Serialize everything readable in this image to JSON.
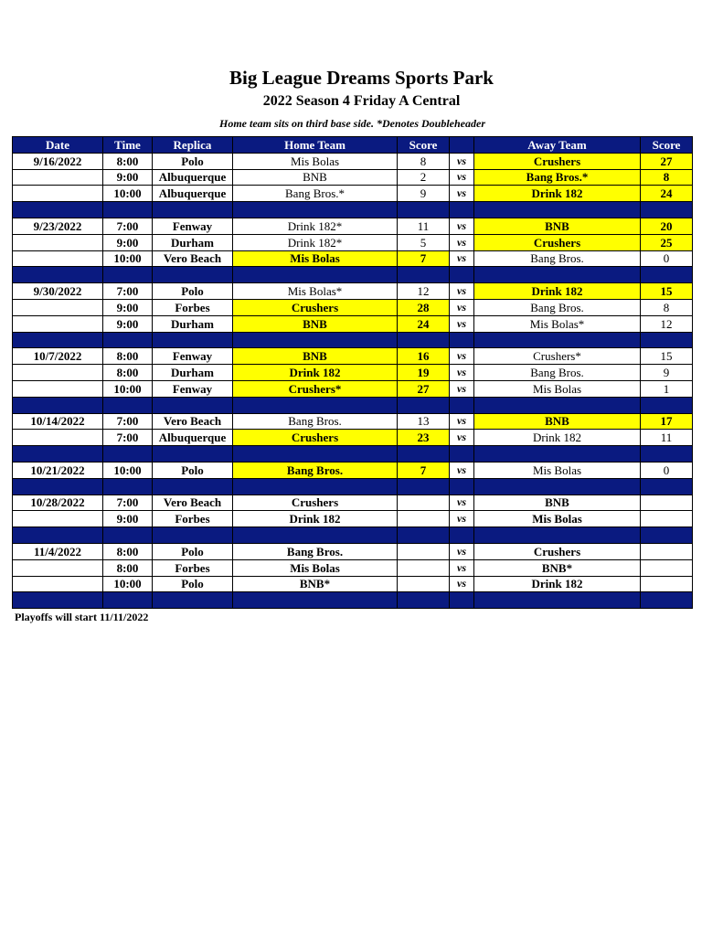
{
  "header": {
    "title": "Big League Dreams Sports Park",
    "subtitle": "2022 Season 4 Friday A Central",
    "note": "Home team sits on third base side.  *Denotes Doubleheader"
  },
  "table": {
    "columns": [
      "Date",
      "Time",
      "Replica",
      "Home Team",
      "Score",
      "",
      "Away Team",
      "Score"
    ],
    "highlight_color": "#ffff00",
    "header_color": "#0a1a80",
    "groups": [
      {
        "date": "9/16/2022",
        "games": [
          {
            "time": "8:00",
            "replica": "Polo",
            "home": "Mis Bolas",
            "home_score": "8",
            "vs": "vs",
            "away": "Crushers",
            "away_score": "27",
            "winner": "away"
          },
          {
            "time": "9:00",
            "replica": "Albuquerque",
            "home": "BNB",
            "home_score": "2",
            "vs": "vs",
            "away": "Bang Bros.*",
            "away_score": "8",
            "winner": "away"
          },
          {
            "time": "10:00",
            "replica": "Albuquerque",
            "home": "Bang Bros.*",
            "home_score": "9",
            "vs": "vs",
            "away": "Drink 182",
            "away_score": "24",
            "winner": "away"
          }
        ]
      },
      {
        "date": "9/23/2022",
        "games": [
          {
            "time": "7:00",
            "replica": "Fenway",
            "home": "Drink 182*",
            "home_score": "11",
            "vs": "vs",
            "away": "BNB",
            "away_score": "20",
            "winner": "away"
          },
          {
            "time": "9:00",
            "replica": "Durham",
            "home": "Drink 182*",
            "home_score": "5",
            "vs": "vs",
            "away": "Crushers",
            "away_score": "25",
            "winner": "away"
          },
          {
            "time": "10:00",
            "replica": "Vero Beach",
            "home": "Mis Bolas",
            "home_score": "7",
            "vs": "vs",
            "away": "Bang Bros.",
            "away_score": "0",
            "winner": "home"
          }
        ]
      },
      {
        "date": "9/30/2022",
        "games": [
          {
            "time": "7:00",
            "replica": "Polo",
            "home": "Mis Bolas*",
            "home_score": "12",
            "vs": "vs",
            "away": "Drink 182",
            "away_score": "15",
            "winner": "away"
          },
          {
            "time": "9:00",
            "replica": "Forbes",
            "home": "Crushers",
            "home_score": "28",
            "vs": "vs",
            "away": "Bang Bros.",
            "away_score": "8",
            "winner": "home"
          },
          {
            "time": "9:00",
            "replica": "Durham",
            "home": "BNB",
            "home_score": "24",
            "vs": "vs",
            "away": "Mis Bolas*",
            "away_score": "12",
            "winner": "home"
          }
        ]
      },
      {
        "date": "10/7/2022",
        "games": [
          {
            "time": "8:00",
            "replica": "Fenway",
            "home": "BNB",
            "home_score": "16",
            "vs": "vs",
            "away": "Crushers*",
            "away_score": "15",
            "winner": "home"
          },
          {
            "time": "8:00",
            "replica": "Durham",
            "home": "Drink 182",
            "home_score": "19",
            "vs": "vs",
            "away": "Bang Bros.",
            "away_score": "9",
            "winner": "home"
          },
          {
            "time": "10:00",
            "replica": "Fenway",
            "home": "Crushers*",
            "home_score": "27",
            "vs": "vs",
            "away": "Mis Bolas",
            "away_score": "1",
            "winner": "home"
          }
        ]
      },
      {
        "date": "10/14/2022",
        "games": [
          {
            "time": "7:00",
            "replica": "Vero Beach",
            "home": "Bang Bros.",
            "home_score": "13",
            "vs": "vs",
            "away": "BNB",
            "away_score": "17",
            "winner": "away"
          },
          {
            "time": "7:00",
            "replica": "Albuquerque",
            "home": "Crushers",
            "home_score": "23",
            "vs": "vs",
            "away": "Drink 182",
            "away_score": "11",
            "winner": "home"
          }
        ]
      },
      {
        "date": "10/21/2022",
        "games": [
          {
            "time": "10:00",
            "replica": "Polo",
            "home": "Bang Bros.",
            "home_score": "7",
            "vs": "vs",
            "away": "Mis Bolas",
            "away_score": "0",
            "winner": "home"
          }
        ]
      },
      {
        "date": "10/28/2022",
        "games": [
          {
            "time": "7:00",
            "replica": "Vero Beach",
            "home": "Crushers",
            "home_score": "",
            "vs": "vs",
            "away": "BNB",
            "away_score": "",
            "winner": ""
          },
          {
            "time": "9:00",
            "replica": "Forbes",
            "home": "Drink 182",
            "home_score": "",
            "vs": "vs",
            "away": "Mis Bolas",
            "away_score": "",
            "winner": ""
          }
        ]
      },
      {
        "date": "11/4/2022",
        "games": [
          {
            "time": "8:00",
            "replica": "Polo",
            "home": "Bang Bros.",
            "home_score": "",
            "vs": "vs",
            "away": "Crushers",
            "away_score": "",
            "winner": ""
          },
          {
            "time": "8:00",
            "replica": "Forbes",
            "home": "Mis Bolas",
            "home_score": "",
            "vs": "vs",
            "away": "BNB*",
            "away_score": "",
            "winner": ""
          },
          {
            "time": "10:00",
            "replica": "Polo",
            "home": "BNB*",
            "home_score": "",
            "vs": "vs",
            "away": "Drink 182",
            "away_score": "",
            "winner": ""
          }
        ]
      }
    ]
  },
  "footer": {
    "text": "Playoffs will start 11/11/2022"
  }
}
